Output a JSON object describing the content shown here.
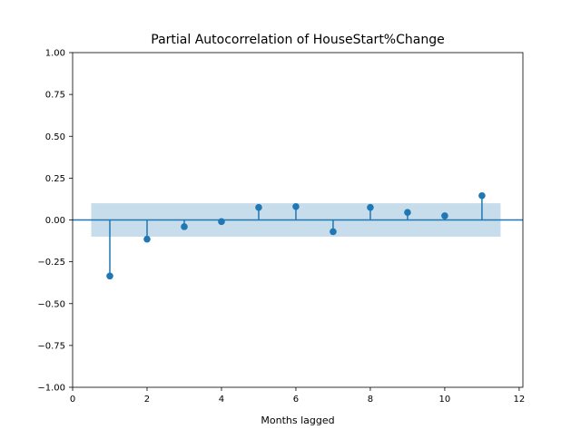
{
  "chart_data": {
    "type": "stem",
    "title": "Partial Autocorrelation of HouseStart%Change",
    "xlabel": "Months lagged",
    "ylabel": "",
    "xlim": [
      0,
      12.1
    ],
    "ylim": [
      -1.0,
      1.0
    ],
    "xticks": [
      0,
      2,
      4,
      6,
      8,
      10,
      12
    ],
    "yticks": [
      -1.0,
      -0.75,
      -0.5,
      -0.25,
      0.0,
      0.25,
      0.5,
      0.75,
      1.0
    ],
    "ytick_labels": [
      "−1.00",
      "−0.75",
      "−0.50",
      "−0.25",
      "0.00",
      "0.25",
      "0.50",
      "0.75",
      "1.00"
    ],
    "series": [
      {
        "x": [
          1,
          2,
          3,
          4,
          5,
          6,
          7,
          8,
          9,
          10,
          11
        ],
        "values": [
          -0.335,
          -0.115,
          -0.04,
          -0.01,
          0.075,
          0.08,
          -0.07,
          0.075,
          0.045,
          0.025,
          0.145
        ]
      }
    ],
    "confidence_band": {
      "x_range": [
        0.5,
        11.5
      ],
      "lower": -0.1,
      "upper": 0.1
    },
    "grid": false,
    "colors": {
      "series": "#1f77b4",
      "band": "#1f77b4",
      "axis": "#000000"
    }
  }
}
